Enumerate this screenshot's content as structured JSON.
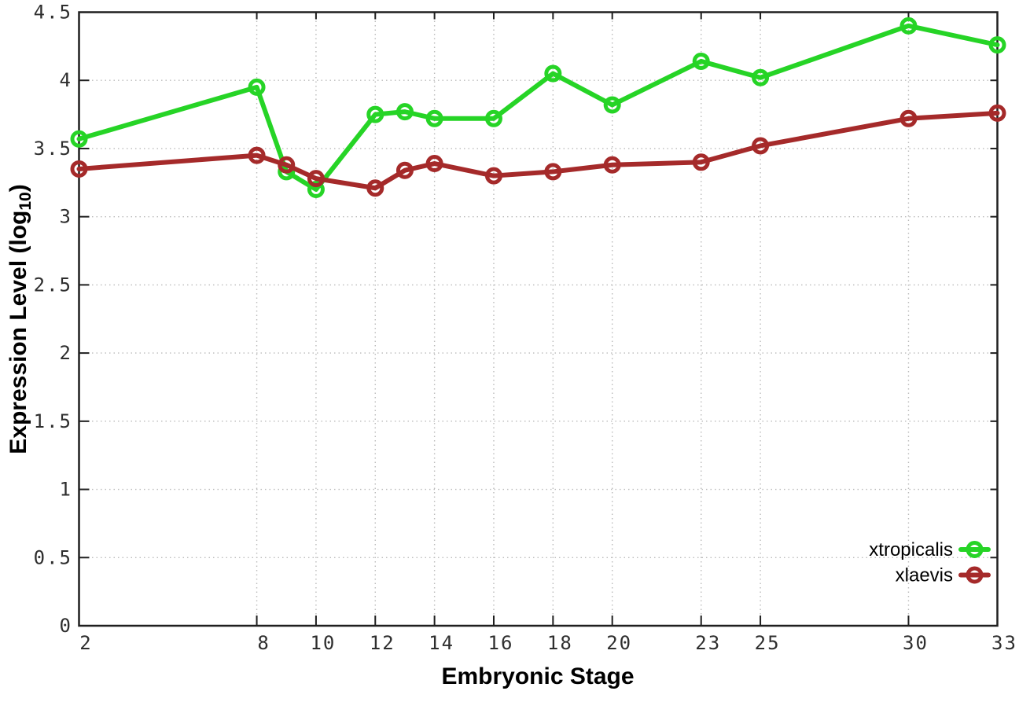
{
  "chart_data": {
    "type": "line",
    "title": "",
    "xlabel": "Embryonic Stage",
    "ylabel": "Expression Level (log10)",
    "ylabel_parts": {
      "base": "Expression Level (log",
      "sub": "10",
      "close": ")"
    },
    "xlim": [
      2,
      33
    ],
    "ylim": [
      0,
      4.5
    ],
    "grid": true,
    "legend_position": "inside-bottom-right",
    "x": [
      2,
      8,
      9,
      10,
      12,
      13,
      14,
      16,
      18,
      20,
      23,
      25,
      30,
      33
    ],
    "xticks": [
      2,
      8,
      10,
      12,
      14,
      16,
      18,
      20,
      23,
      25,
      30,
      33
    ],
    "xtick_labels": [
      "2",
      "8",
      "10",
      "12",
      "14",
      "16",
      "18",
      "20",
      "23",
      "25",
      "30",
      "33"
    ],
    "yticks": [
      0,
      0.5,
      1,
      1.5,
      2,
      2.5,
      3,
      3.5,
      4,
      4.5
    ],
    "ytick_labels": [
      "0",
      "0.5",
      "1",
      "1.5",
      "2",
      "2.5",
      "3",
      "3.5",
      "4",
      "4.5"
    ],
    "series": [
      {
        "name": "xtropicalis",
        "color": "#26d426",
        "marker": "open-circle",
        "values": [
          3.57,
          3.95,
          3.33,
          3.2,
          3.75,
          3.77,
          3.72,
          3.72,
          4.05,
          3.82,
          4.14,
          4.02,
          4.4,
          4.26
        ]
      },
      {
        "name": "xlaevis",
        "color": "#a52a2a",
        "marker": "open-circle",
        "values": [
          3.35,
          3.45,
          3.38,
          3.28,
          3.21,
          3.34,
          3.39,
          3.3,
          3.33,
          3.38,
          3.4,
          3.52,
          3.72,
          3.76
        ]
      }
    ],
    "style": {
      "frame_color": "#1f1f1f",
      "grid_color": "#bbbbbb",
      "tick_label_color": "#2e2e2e",
      "background": "#ffffff"
    }
  }
}
